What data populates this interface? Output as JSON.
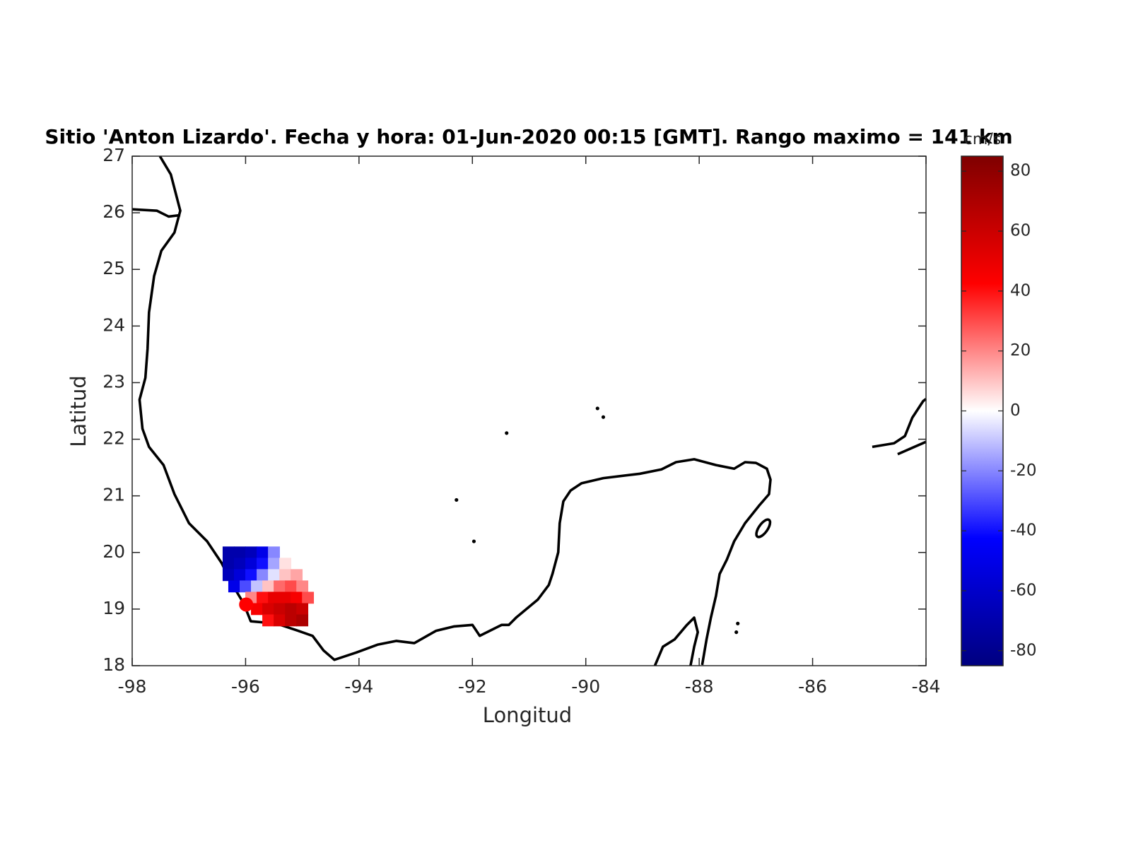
{
  "chart_data": {
    "type": "map",
    "title": "Sitio 'Anton Lizardo'. Fecha y hora: 01-Jun-2020 00:15 [GMT]. Rango maximo = 141 km",
    "xlabel": "Longitud",
    "ylabel": "Latitud",
    "xlim": [
      -98,
      -84
    ],
    "xticks": [
      -98,
      -96,
      -94,
      -92,
      -90,
      -88,
      -86,
      -84
    ],
    "ylim": [
      18,
      27
    ],
    "yticks": [
      18,
      19,
      20,
      21,
      22,
      23,
      24,
      25,
      26,
      27
    ],
    "x": [
      -96.3,
      -96.1,
      -95.9,
      -95.7,
      -95.5,
      -96.3,
      -96.1,
      -95.9,
      -95.7,
      -95.5,
      -95.3,
      -96.3,
      -96.1,
      -95.9,
      -95.7,
      -95.5,
      -95.3,
      -95.1,
      -96.2,
      -96.0,
      -95.8,
      -95.6,
      -95.4,
      -95.2,
      -95.0,
      -95.9,
      -95.7,
      -95.5,
      -95.3,
      -95.1,
      -94.9,
      -95.8,
      -95.6,
      -95.4,
      -95.2,
      -95.0,
      -95.6,
      -95.4,
      -95.2,
      -95.0
    ],
    "y": [
      20.0,
      20.0,
      20.0,
      20.0,
      20.0,
      19.8,
      19.8,
      19.8,
      19.8,
      19.8,
      19.8,
      19.6,
      19.6,
      19.6,
      19.6,
      19.6,
      19.6,
      19.6,
      19.4,
      19.4,
      19.4,
      19.4,
      19.4,
      19.4,
      19.4,
      19.2,
      19.2,
      19.2,
      19.2,
      19.2,
      19.2,
      19.0,
      19.0,
      19.0,
      19.0,
      19.0,
      18.8,
      18.8,
      18.8,
      18.8
    ],
    "values": [
      -70,
      -70,
      -65,
      -50,
      -20,
      -70,
      -65,
      -55,
      -40,
      -15,
      5,
      -65,
      -55,
      -40,
      -20,
      -5,
      10,
      15,
      -50,
      -30,
      -10,
      10,
      25,
      30,
      20,
      20,
      40,
      50,
      50,
      45,
      30,
      45,
      55,
      60,
      65,
      60,
      40,
      55,
      65,
      70
    ],
    "site_marker": {
      "x": -95.99,
      "y": 19.08,
      "color": "#ff0000"
    },
    "colorbar": {
      "label": "cm/s",
      "clim": [
        -85,
        85
      ],
      "ticks": [
        -80,
        -60,
        -40,
        -20,
        0,
        20,
        40,
        60,
        80
      ],
      "colormap": [
        "#00007f",
        "#0000ff",
        "#ffffff",
        "#ff0000",
        "#7f0000"
      ]
    }
  }
}
